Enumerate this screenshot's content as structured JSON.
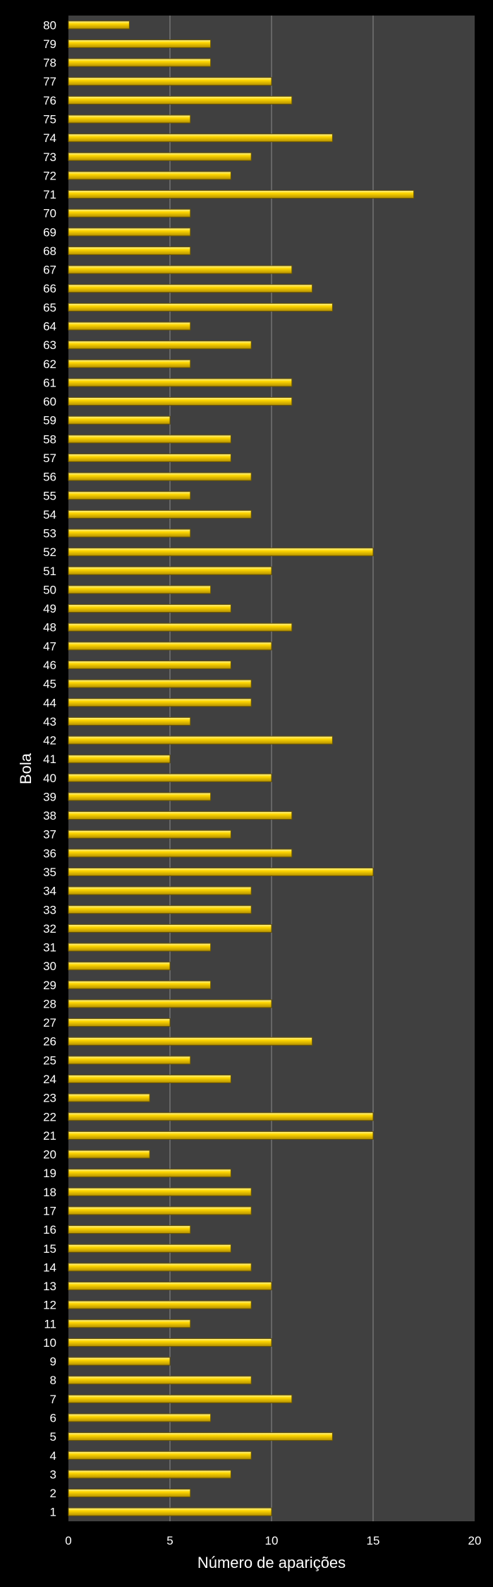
{
  "chart_data": {
    "type": "bar",
    "orientation": "horizontal",
    "title": "",
    "xlabel": "Número de aparições",
    "ylabel": "Bola",
    "xlim": [
      0,
      20
    ],
    "xticks": [
      "0",
      "5",
      "10",
      "15",
      "20"
    ],
    "grid": "vertical",
    "legend": "none",
    "categories": [
      "1",
      "2",
      "3",
      "4",
      "5",
      "6",
      "7",
      "8",
      "9",
      "10",
      "11",
      "12",
      "13",
      "14",
      "15",
      "16",
      "17",
      "18",
      "19",
      "20",
      "21",
      "22",
      "23",
      "24",
      "25",
      "26",
      "27",
      "28",
      "29",
      "30",
      "31",
      "32",
      "33",
      "34",
      "35",
      "36",
      "37",
      "38",
      "39",
      "40",
      "41",
      "42",
      "43",
      "44",
      "45",
      "46",
      "47",
      "48",
      "49",
      "50",
      "51",
      "52",
      "53",
      "54",
      "55",
      "56",
      "57",
      "58",
      "59",
      "60",
      "61",
      "62",
      "63",
      "64",
      "65",
      "66",
      "67",
      "68",
      "69",
      "70",
      "71",
      "72",
      "73",
      "74",
      "75",
      "76",
      "77",
      "78",
      "79",
      "80"
    ],
    "values": [
      10,
      6,
      8,
      9,
      13,
      7,
      11,
      9,
      5,
      10,
      6,
      9,
      10,
      9,
      8,
      6,
      9,
      9,
      8,
      4,
      15,
      15,
      4,
      8,
      6,
      12,
      5,
      10,
      7,
      5,
      7,
      10,
      9,
      9,
      15,
      11,
      8,
      11,
      7,
      10,
      5,
      13,
      6,
      9,
      9,
      8,
      10,
      11,
      8,
      7,
      10,
      15,
      6,
      9,
      6,
      9,
      8,
      8,
      5,
      11,
      11,
      6,
      9,
      6,
      13,
      12,
      11,
      6,
      6,
      6,
      17,
      8,
      9,
      13,
      6,
      11,
      10,
      7,
      7,
      3
    ],
    "colors": {
      "background": "#000000",
      "plot_area": "#404040",
      "gridline": "#8c8c8c",
      "bar_top": "#fff7a0",
      "bar_mid": "#ffd700",
      "bar_bottom": "#b38f00",
      "bar_edge": "#6b5600",
      "text": "#ffffff"
    }
  }
}
